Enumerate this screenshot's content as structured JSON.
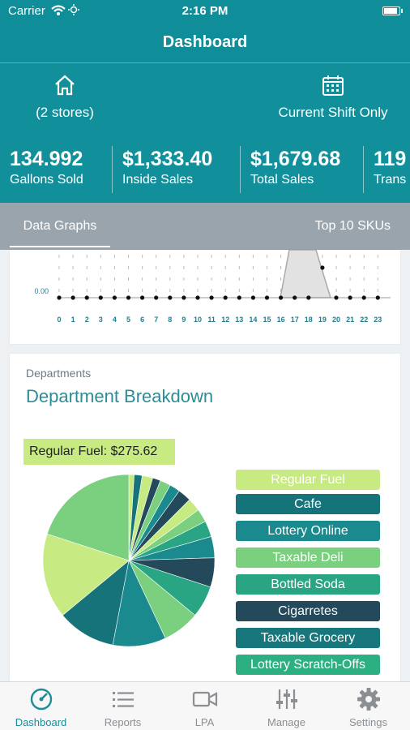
{
  "status_bar": {
    "carrier": "Carrier",
    "time": "2:16 PM"
  },
  "nav": {
    "title": "Dashboard"
  },
  "header": {
    "stores_label": "(2 stores)",
    "shift_label": "Current Shift Only",
    "metrics": [
      {
        "value": "134.992",
        "label": "Gallons Sold"
      },
      {
        "value": "$1,333.40",
        "label": "Inside Sales"
      },
      {
        "value": "$1,679.68",
        "label": "Total Sales"
      },
      {
        "value": "119",
        "label": "Trans"
      }
    ]
  },
  "tabs": {
    "data_graphs": "Data Graphs",
    "top_skus": "Top 10 SKUs"
  },
  "hourly_chart": {
    "y_tick": "0.00",
    "hours": [
      "0",
      "1",
      "2",
      "3",
      "4",
      "5",
      "6",
      "7",
      "8",
      "9",
      "10",
      "11",
      "12",
      "13",
      "14",
      "15",
      "16",
      "17",
      "18",
      "19",
      "20",
      "21",
      "22",
      "23"
    ]
  },
  "departments": {
    "kicker": "Departments",
    "title": "Department Breakdown",
    "tooltip": "Regular Fuel: $275.62",
    "legend": [
      {
        "label": "Regular Fuel",
        "color": "#c7ea82"
      },
      {
        "label": "Cafe",
        "color": "#16737a"
      },
      {
        "label": "Lottery Online",
        "color": "#1a8a8f"
      },
      {
        "label": "Taxable Deli",
        "color": "#7bd07f"
      },
      {
        "label": "Bottled Soda",
        "color": "#2aa584"
      },
      {
        "label": "Cigarretes",
        "color": "#23495a"
      },
      {
        "label": "Taxable Grocery",
        "color": "#18767d"
      },
      {
        "label": "Lottery Scratch-Offs",
        "color": "#2cb082"
      }
    ]
  },
  "bottom_tabs": [
    {
      "label": "Dashboard",
      "icon": "gauge-icon",
      "active": true
    },
    {
      "label": "Reports",
      "icon": "list-icon",
      "active": false
    },
    {
      "label": "LPA",
      "icon": "video-camera-icon",
      "active": false
    },
    {
      "label": "Manage",
      "icon": "sliders-icon",
      "active": false
    },
    {
      "label": "Settings",
      "icon": "gear-icon",
      "active": false
    }
  ]
}
